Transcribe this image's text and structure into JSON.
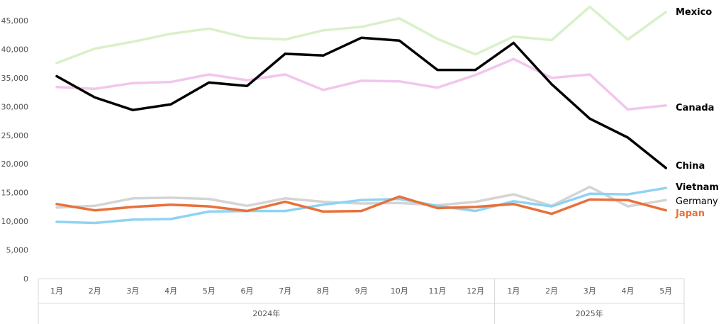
{
  "chart_data": {
    "type": "line",
    "title": "",
    "xlabel": "",
    "ylabel": "",
    "ylim": [
      0,
      45000
    ],
    "yticks": [
      "0",
      "5,000",
      "10,000",
      "15,000",
      "20,000",
      "25,000",
      "30,000",
      "35,000",
      "40,000",
      "45,000"
    ],
    "ytick_values": [
      0,
      5000,
      10000,
      15000,
      20000,
      25000,
      30000,
      35000,
      40000,
      45000
    ],
    "categories": [
      "1月",
      "2月",
      "3月",
      "4月",
      "5月",
      "6月",
      "7月",
      "8月",
      "9月",
      "10月",
      "11月",
      "12月",
      "1月",
      "2月",
      "3月",
      "4月",
      "5月"
    ],
    "year_groups": [
      {
        "label": "2024年",
        "count": 12
      },
      {
        "label": "2025年",
        "count": 5
      }
    ],
    "grid": false,
    "legend": "labels at line ends (right)",
    "series": [
      {
        "name": "Mexico",
        "color": "#d9f0c9",
        "label_color": "#000000",
        "bold": true,
        "values": [
          37600,
          40100,
          41300,
          42700,
          43600,
          42000,
          41700,
          43300,
          43900,
          45400,
          41800,
          39100,
          42200,
          41600,
          47400,
          41700,
          46500
        ]
      },
      {
        "name": "Canada",
        "color": "#f2c6ea",
        "label_color": "#000000",
        "bold": true,
        "values": [
          33400,
          33100,
          34100,
          34300,
          35600,
          34600,
          35600,
          32900,
          34500,
          34400,
          33300,
          35500,
          38300,
          35000,
          35600,
          29500,
          30200
        ]
      },
      {
        "name": "China",
        "color": "#000000",
        "label_color": "#000000",
        "bold": true,
        "values": [
          35300,
          31600,
          29400,
          30400,
          34200,
          33600,
          39200,
          38900,
          42000,
          41500,
          36400,
          36400,
          41100,
          33900,
          27900,
          24600,
          19300
        ]
      },
      {
        "name": "Vietnam",
        "color": "#8fd3f2",
        "label_color": "#000000",
        "bold": true,
        "values": [
          9900,
          9700,
          10300,
          10400,
          11700,
          11800,
          11800,
          12900,
          13700,
          13900,
          12700,
          11800,
          13500,
          12600,
          14800,
          14700,
          15800
        ]
      },
      {
        "name": "Germany",
        "color": "#d4d4d4",
        "label_color": "#000000",
        "bold": false,
        "values": [
          12400,
          12700,
          14000,
          14100,
          13900,
          12700,
          14000,
          13400,
          13100,
          13200,
          12800,
          13400,
          14700,
          12700,
          16000,
          12600,
          13700
        ]
      },
      {
        "name": "Japan",
        "color": "#e8703a",
        "label_color": "#e8703a",
        "bold": true,
        "values": [
          13000,
          11900,
          12500,
          12900,
          12600,
          11800,
          13400,
          11700,
          11800,
          14300,
          12300,
          12500,
          13000,
          11300,
          13800,
          13700,
          11900
        ]
      }
    ]
  }
}
